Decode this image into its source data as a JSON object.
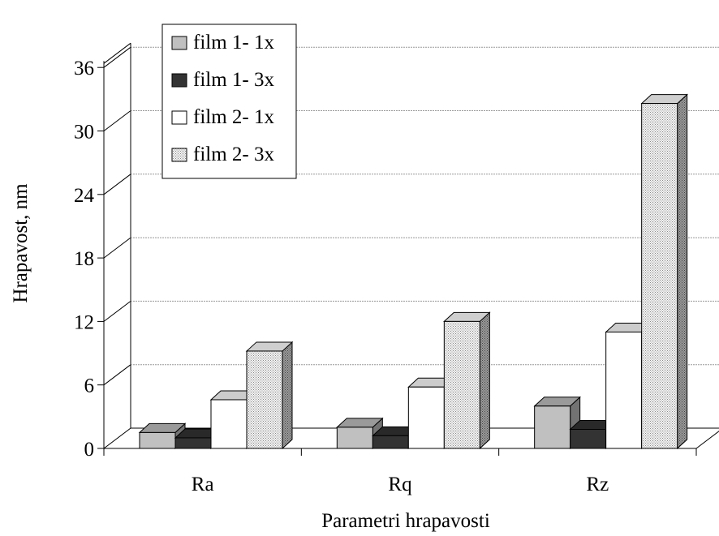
{
  "chart_data": {
    "type": "bar",
    "title": "",
    "xlabel": "Parametri hrapavosti",
    "ylabel": "Hrapavost, nm",
    "categories": [
      "Ra",
      "Rq",
      "Rz"
    ],
    "yticks": [
      "0",
      "6",
      "12",
      "18",
      "24",
      "30",
      "36"
    ],
    "ylim": [
      0,
      36
    ],
    "grid": true,
    "legend_position": "top-left",
    "series": [
      {
        "name": "film 1- 1x",
        "values": [
          1.5,
          2.0,
          4.0
        ],
        "color": "#c0c0c0",
        "pattern": "solid"
      },
      {
        "name": "film 1- 3x",
        "values": [
          1.0,
          1.2,
          1.8
        ],
        "color": "#333333",
        "pattern": "solid"
      },
      {
        "name": "film 2- 1x",
        "values": [
          4.6,
          5.8,
          11.0
        ],
        "color": "#ffffff",
        "pattern": "solid"
      },
      {
        "name": "film 2- 3x",
        "values": [
          9.2,
          12.0,
          32.6
        ],
        "color": "#e6e6e6",
        "pattern": "dotted"
      }
    ]
  }
}
